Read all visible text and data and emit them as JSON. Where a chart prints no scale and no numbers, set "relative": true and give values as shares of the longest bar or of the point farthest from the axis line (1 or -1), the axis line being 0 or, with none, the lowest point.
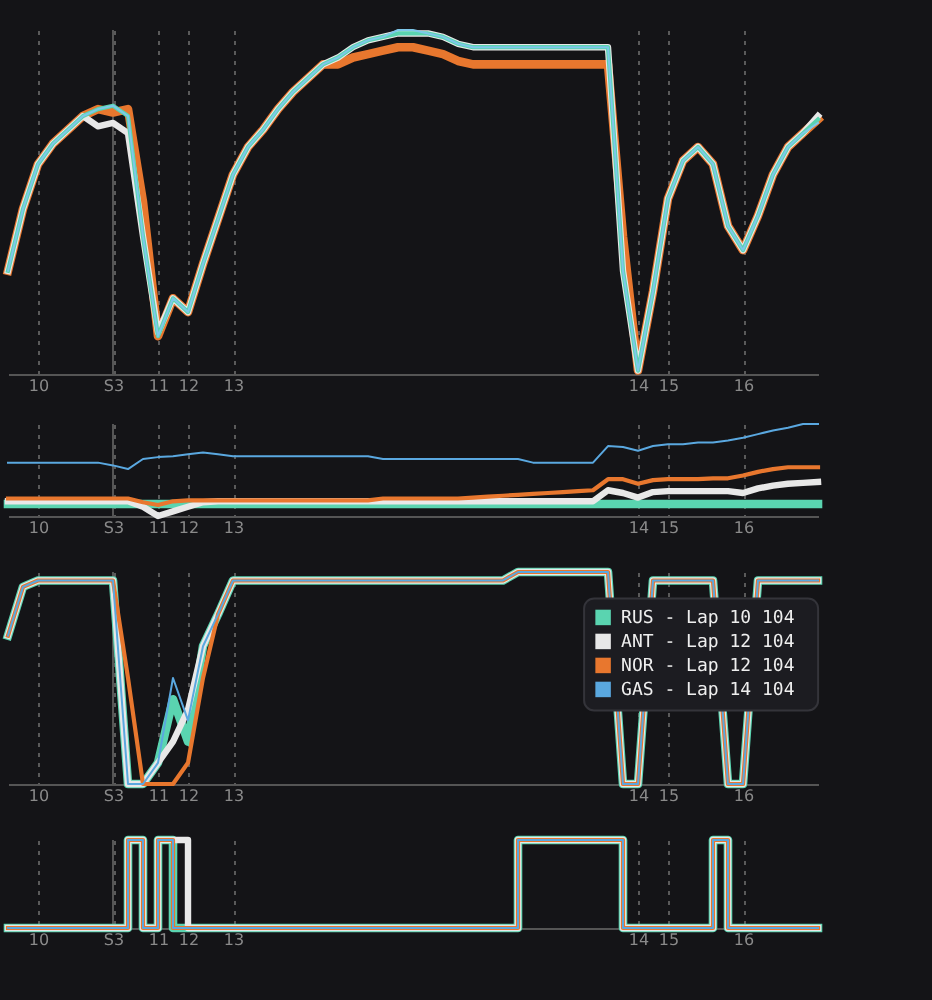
{
  "chart_data": [
    {
      "type": "line",
      "relative": true,
      "grid": "x",
      "legend": false,
      "marker": "none",
      "categories": [
        null,
        null,
        "10",
        null,
        null,
        null,
        null,
        "S3",
        null,
        null,
        "11",
        null,
        "12",
        null,
        null,
        "13",
        null,
        null,
        null,
        null,
        null,
        null,
        null,
        null,
        null,
        null,
        null,
        null,
        null,
        null,
        null,
        null,
        null,
        null,
        null,
        null,
        null,
        null,
        null,
        null,
        null,
        null,
        "14",
        null,
        "15",
        null,
        null,
        null,
        null,
        "16",
        null,
        null,
        null,
        null,
        null
      ],
      "ref_lines": [
        {
          "axis": "x",
          "value": "S3",
          "label": null,
          "line_style": "solid",
          "color": "#555555"
        }
      ],
      "series": [
        {
          "color": "#e8772e",
          "values": [
            0.3,
            0.48,
            0.61,
            0.67,
            0.71,
            0.75,
            0.77,
            0.76,
            0.77,
            0.5,
            0.11,
            0.22,
            0.18,
            0.32,
            0.45,
            0.58,
            0.66,
            0.71,
            0.77,
            0.82,
            0.86,
            0.9,
            0.9,
            0.92,
            0.93,
            0.94,
            0.95,
            0.95,
            0.94,
            0.93,
            0.91,
            0.9,
            0.9,
            0.9,
            0.9,
            0.9,
            0.9,
            0.9,
            0.9,
            0.9,
            0.9,
            0.4,
            0.01,
            0.24,
            0.51,
            0.62,
            0.66,
            0.61,
            0.43,
            0.36,
            0.46,
            0.58,
            0.66,
            0.7,
            0.74
          ]
        },
        {
          "color": "#e8e8e8",
          "values": [
            0.3,
            0.48,
            0.61,
            0.67,
            0.71,
            0.75,
            0.72,
            0.73,
            0.7,
            0.4,
            0.12,
            0.22,
            0.18,
            0.32,
            0.45,
            0.58,
            0.66,
            0.71,
            0.77,
            0.82,
            0.86,
            0.9,
            0.92,
            0.95,
            0.97,
            0.98,
            0.99,
            0.99,
            0.99,
            0.98,
            0.96,
            0.95,
            0.95,
            0.95,
            0.95,
            0.95,
            0.95,
            0.95,
            0.95,
            0.95,
            0.95,
            0.3,
            0.01,
            0.24,
            0.51,
            0.62,
            0.66,
            0.61,
            0.43,
            0.36,
            0.46,
            0.58,
            0.66,
            0.7,
            0.75
          ]
        },
        {
          "color": "#5ad4b0",
          "values": [
            0.3,
            0.48,
            0.61,
            0.67,
            0.71,
            0.75,
            0.77,
            0.78,
            0.75,
            0.4,
            0.11,
            0.22,
            0.18,
            0.32,
            0.45,
            0.58,
            0.66,
            0.71,
            0.77,
            0.82,
            0.86,
            0.9,
            0.92,
            0.95,
            0.97,
            0.98,
            0.99,
            0.99,
            0.99,
            0.98,
            0.96,
            0.95,
            0.95,
            0.95,
            0.95,
            0.95,
            0.95,
            0.95,
            0.95,
            0.95,
            0.95,
            0.3,
            0.01,
            0.24,
            0.51,
            0.62,
            0.66,
            0.61,
            0.43,
            0.36,
            0.46,
            0.58,
            0.66,
            0.7,
            0.74
          ]
        },
        {
          "color": "#7ec8ea",
          "values": [
            0.3,
            0.48,
            0.61,
            0.67,
            0.71,
            0.75,
            0.77,
            0.78,
            0.75,
            0.4,
            0.11,
            0.22,
            0.18,
            0.32,
            0.45,
            0.58,
            0.66,
            0.71,
            0.77,
            0.82,
            0.86,
            0.9,
            0.92,
            0.95,
            0.97,
            0.98,
            1.0,
            1.0,
            0.99,
            0.98,
            0.96,
            0.95,
            0.95,
            0.95,
            0.95,
            0.95,
            0.95,
            0.95,
            0.95,
            0.95,
            0.95,
            0.3,
            0.01,
            0.24,
            0.51,
            0.62,
            0.66,
            0.61,
            0.43,
            0.36,
            0.46,
            0.58,
            0.66,
            0.7,
            0.73
          ]
        }
      ]
    },
    {
      "type": "line",
      "relative": true,
      "grid": "x",
      "legend": false,
      "marker": "none",
      "categories": [
        null,
        null,
        "10",
        null,
        null,
        null,
        null,
        "S3",
        null,
        null,
        "11",
        null,
        "12",
        null,
        null,
        "13",
        null,
        null,
        null,
        null,
        null,
        null,
        null,
        null,
        null,
        null,
        null,
        null,
        null,
        null,
        null,
        null,
        null,
        null,
        null,
        null,
        null,
        null,
        null,
        null,
        null,
        null,
        "14",
        null,
        "15",
        null,
        null,
        null,
        null,
        "16",
        null,
        null,
        null,
        null,
        null
      ],
      "ref_lines": [
        {
          "axis": "x",
          "value": "S3",
          "label": null,
          "line_style": "solid",
          "color": "#555555"
        }
      ],
      "series": [
        {
          "color": "#5ad4b0",
          "values": [
            0.13,
            0.13,
            0.13,
            0.13,
            0.13,
            0.13,
            0.13,
            0.13,
            0.13,
            0.13,
            0.13,
            0.13,
            0.13,
            0.13,
            0.13,
            0.13,
            0.13,
            0.13,
            0.13,
            0.13,
            0.13,
            0.13,
            0.13,
            0.13,
            0.13,
            0.13,
            0.13,
            0.13,
            0.13,
            0.13,
            0.13,
            0.13,
            0.13,
            0.13,
            0.13,
            0.13,
            0.13,
            0.13,
            0.13,
            0.13,
            0.13,
            0.13,
            0.13,
            0.13,
            0.13,
            0.13,
            0.13,
            0.13,
            0.13,
            0.13,
            0.13,
            0.13,
            0.13,
            0.13,
            0.13
          ]
        },
        {
          "color": "#e8e8e8",
          "values": [
            0.16,
            0.16,
            0.16,
            0.16,
            0.16,
            0.16,
            0.16,
            0.16,
            0.16,
            0.1,
            0.0,
            0.05,
            0.1,
            0.15,
            0.16,
            0.16,
            0.16,
            0.16,
            0.16,
            0.16,
            0.16,
            0.16,
            0.16,
            0.16,
            0.16,
            0.16,
            0.16,
            0.16,
            0.16,
            0.16,
            0.16,
            0.16,
            0.16,
            0.16,
            0.16,
            0.16,
            0.16,
            0.16,
            0.16,
            0.16,
            0.28,
            0.25,
            0.2,
            0.26,
            0.27,
            0.27,
            0.27,
            0.27,
            0.27,
            0.25,
            0.3,
            0.33,
            0.35,
            0.36,
            0.37
          ]
        },
        {
          "color": "#e8772e",
          "values": [
            0.19,
            0.19,
            0.19,
            0.19,
            0.19,
            0.19,
            0.19,
            0.19,
            0.19,
            0.15,
            0.12,
            0.16,
            0.17,
            0.17,
            0.17,
            0.17,
            0.17,
            0.17,
            0.17,
            0.17,
            0.17,
            0.17,
            0.17,
            0.17,
            0.17,
            0.19,
            0.19,
            0.19,
            0.19,
            0.19,
            0.19,
            0.2,
            0.21,
            0.22,
            0.23,
            0.24,
            0.25,
            0.26,
            0.27,
            0.28,
            0.4,
            0.4,
            0.35,
            0.39,
            0.4,
            0.4,
            0.4,
            0.41,
            0.41,
            0.44,
            0.48,
            0.51,
            0.53,
            0.53,
            0.53
          ]
        },
        {
          "color": "#5aa8e0",
          "values": [
            0.58,
            0.58,
            0.58,
            0.58,
            0.58,
            0.58,
            0.58,
            0.55,
            0.51,
            0.62,
            0.64,
            0.65,
            0.67,
            0.69,
            0.67,
            0.65,
            0.65,
            0.65,
            0.65,
            0.65,
            0.65,
            0.65,
            0.65,
            0.65,
            0.65,
            0.62,
            0.62,
            0.62,
            0.62,
            0.62,
            0.62,
            0.62,
            0.62,
            0.62,
            0.62,
            0.58,
            0.58,
            0.58,
            0.58,
            0.58,
            0.76,
            0.75,
            0.71,
            0.76,
            0.78,
            0.78,
            0.8,
            0.8,
            0.82,
            0.85,
            0.89,
            0.93,
            0.96,
            1.0,
            1.0
          ]
        }
      ]
    },
    {
      "type": "line",
      "relative": true,
      "grid": "x",
      "legend": "top right",
      "marker": "none",
      "categories": [
        null,
        null,
        "10",
        null,
        null,
        null,
        null,
        "S3",
        null,
        null,
        "11",
        null,
        "12",
        null,
        null,
        "13",
        null,
        null,
        null,
        null,
        null,
        null,
        null,
        null,
        null,
        null,
        null,
        null,
        null,
        null,
        null,
        null,
        null,
        null,
        null,
        null,
        null,
        null,
        null,
        null,
        null,
        null,
        "14",
        null,
        "15",
        null,
        null,
        null,
        null,
        "16",
        null,
        null,
        null,
        null,
        null
      ],
      "ref_lines": [
        {
          "axis": "x",
          "value": "S3",
          "label": null,
          "line_style": "solid",
          "color": "#555555"
        }
      ],
      "series": [
        {
          "name": "RUS - Lap 10  104",
          "color": "#5ad4b0",
          "values": [
            0.7,
            0.93,
            0.96,
            0.96,
            0.96,
            0.96,
            0.96,
            0.96,
            0,
            0,
            0.1,
            0.4,
            0.2,
            0.65,
            0.8,
            0.96,
            0.96,
            0.96,
            0.96,
            0.96,
            0.96,
            0.96,
            0.96,
            0.96,
            0.96,
            0.96,
            0.96,
            0.96,
            0.96,
            0.96,
            0.96,
            0.96,
            0.96,
            0.96,
            1,
            1,
            1,
            1,
            1,
            1,
            1,
            0,
            0,
            0.96,
            0.96,
            0.96,
            0.96,
            0.96,
            0,
            0,
            0.96,
            0.96,
            0.96,
            0.96,
            0.96
          ]
        },
        {
          "name": "ANT - Lap 12  104",
          "color": "#e8e8e8",
          "values": [
            0.7,
            0.93,
            0.96,
            0.96,
            0.96,
            0.96,
            0.96,
            0.96,
            0,
            0,
            0.1,
            0.2,
            0.35,
            0.65,
            0.8,
            0.96,
            0.96,
            0.96,
            0.96,
            0.96,
            0.96,
            0.96,
            0.96,
            0.96,
            0.96,
            0.96,
            0.96,
            0.96,
            0.96,
            0.96,
            0.96,
            0.96,
            0.96,
            0.96,
            1,
            1,
            1,
            1,
            1,
            1,
            1,
            0,
            0,
            0.96,
            0.96,
            0.96,
            0.96,
            0.96,
            0,
            0,
            0.96,
            0.96,
            0.96,
            0.96,
            0.96
          ]
        },
        {
          "name": "NOR - Lap 12  104",
          "color": "#e8772e",
          "values": [
            0.7,
            0.93,
            0.96,
            0.96,
            0.96,
            0.96,
            0.96,
            0.96,
            0.5,
            0,
            0,
            0,
            0.1,
            0.5,
            0.8,
            0.96,
            0.96,
            0.96,
            0.96,
            0.96,
            0.96,
            0.96,
            0.96,
            0.96,
            0.96,
            0.96,
            0.96,
            0.96,
            0.96,
            0.96,
            0.96,
            0.96,
            0.96,
            0.96,
            1,
            1,
            1,
            1,
            1,
            1,
            1,
            0,
            0,
            0.96,
            0.96,
            0.96,
            0.96,
            0.96,
            0,
            0,
            0.96,
            0.96,
            0.96,
            0.96,
            0.96
          ]
        },
        {
          "name": "GAS - Lap 14  104",
          "color": "#5aa8e0",
          "values": [
            0.7,
            0.93,
            0.96,
            0.96,
            0.96,
            0.96,
            0.96,
            0.96,
            0,
            0,
            0.1,
            0.5,
            0.3,
            0.65,
            0.8,
            0.96,
            0.96,
            0.96,
            0.96,
            0.96,
            0.96,
            0.96,
            0.96,
            0.96,
            0.96,
            0.96,
            0.96,
            0.96,
            0.96,
            0.96,
            0.96,
            0.96,
            0.96,
            0.96,
            1,
            1,
            1,
            1,
            1,
            1,
            1,
            0,
            0,
            0.96,
            0.96,
            0.96,
            0.96,
            0.96,
            0,
            0,
            0.96,
            0.96,
            0.96,
            0.96,
            0.96
          ]
        }
      ]
    },
    {
      "type": "step",
      "relative": true,
      "grid": "x",
      "legend": false,
      "marker": "none",
      "categories": [
        null,
        null,
        "10",
        null,
        null,
        null,
        null,
        "S3",
        null,
        null,
        "11",
        null,
        "12",
        null,
        null,
        "13",
        null,
        null,
        null,
        null,
        null,
        null,
        null,
        null,
        null,
        null,
        null,
        null,
        null,
        null,
        null,
        null,
        null,
        null,
        null,
        null,
        null,
        null,
        null,
        null,
        null,
        null,
        "14",
        null,
        "15",
        null,
        null,
        null,
        null,
        "16",
        null,
        null,
        null,
        null,
        null
      ],
      "ref_lines": [
        {
          "axis": "x",
          "value": "S3",
          "label": null,
          "line_style": "solid",
          "color": "#555555"
        }
      ],
      "series": [
        {
          "color": "#5ad4b0",
          "values": [
            0,
            0,
            0,
            0,
            0,
            0,
            0,
            0,
            1,
            0,
            1,
            0,
            0,
            0,
            0,
            0,
            0,
            0,
            0,
            0,
            0,
            0,
            0,
            0,
            0,
            0,
            0,
            0,
            0,
            0,
            0,
            0,
            0,
            0,
            1,
            1,
            1,
            1,
            1,
            1,
            1,
            0,
            0,
            0,
            0,
            0,
            0,
            1,
            0,
            0,
            0,
            0,
            0,
            0,
            0
          ]
        },
        {
          "color": "#e8e8e8",
          "values": [
            0,
            0,
            0,
            0,
            0,
            0,
            0,
            0,
            1,
            0,
            1,
            1,
            0,
            0,
            0,
            0,
            0,
            0,
            0,
            0,
            0,
            0,
            0,
            0,
            0,
            0,
            0,
            0,
            0,
            0,
            0,
            0,
            0,
            0,
            1,
            1,
            1,
            1,
            1,
            1,
            1,
            0,
            0,
            0,
            0,
            0,
            0,
            1,
            0,
            0,
            0,
            0,
            0,
            0,
            0
          ]
        },
        {
          "color": "#e8772e",
          "values": [
            0,
            0,
            0,
            0,
            0,
            0,
            0,
            0,
            1,
            0,
            1,
            0,
            0,
            0,
            0,
            0,
            0,
            0,
            0,
            0,
            0,
            0,
            0,
            0,
            0,
            0,
            0,
            0,
            0,
            0,
            0,
            0,
            0,
            0,
            1,
            1,
            1,
            1,
            1,
            1,
            1,
            0,
            0,
            0,
            0,
            0,
            0,
            1,
            0,
            0,
            0,
            0,
            0,
            0,
            0
          ]
        },
        {
          "color": "#5aa8e0",
          "values": [
            0,
            0,
            0,
            0,
            0,
            0,
            0,
            0,
            1,
            0,
            1,
            0,
            0,
            0,
            0,
            0,
            0,
            0,
            0,
            0,
            0,
            0,
            0,
            0,
            0,
            0,
            0,
            0,
            0,
            0,
            0,
            0,
            0,
            0,
            1,
            1,
            1,
            1,
            1,
            1,
            1,
            0,
            0,
            0,
            0,
            0,
            0,
            1,
            0,
            0,
            0,
            0,
            0,
            0,
            0
          ]
        }
      ]
    }
  ]
}
